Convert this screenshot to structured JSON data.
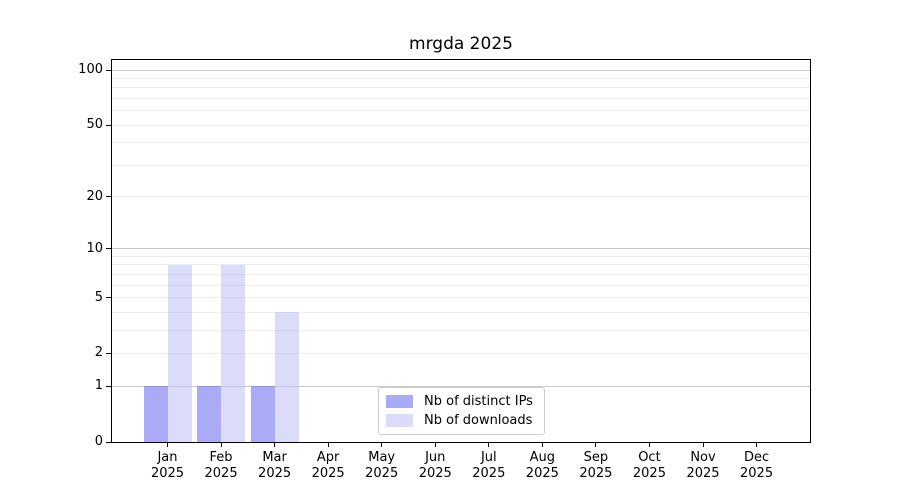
{
  "chart_data": {
    "type": "bar",
    "title": "mrgda 2025",
    "categories": [
      "Jan",
      "Feb",
      "Mar",
      "Apr",
      "May",
      "Jun",
      "Jul",
      "Aug",
      "Sep",
      "Oct",
      "Nov",
      "Dec"
    ],
    "year_label": "2025",
    "series": [
      {
        "name": "Nb of distinct IPs",
        "color": "#aaaaf7",
        "fill": "rgba(85,85,240,0.5)",
        "values": [
          1,
          1,
          1,
          0,
          0,
          0,
          0,
          0,
          0,
          0,
          0,
          0
        ]
      },
      {
        "name": "Nb of downloads",
        "color": "#dcdcf8",
        "fill": "rgba(190,190,245,0.55)",
        "values": [
          8,
          8,
          4,
          0,
          0,
          0,
          0,
          0,
          0,
          0,
          0,
          0
        ]
      }
    ],
    "xlabel": "",
    "ylabel": "",
    "yscale": "log1p",
    "yticks": [
      0,
      1,
      2,
      5,
      10,
      20,
      50,
      100
    ],
    "minor_gridlines": [
      2,
      3,
      4,
      5,
      6,
      7,
      8,
      9,
      20,
      30,
      40,
      50,
      60,
      70,
      80,
      90
    ],
    "major_gridlines": [
      1,
      10,
      100
    ],
    "ylim": [
      0,
      113
    ],
    "grid": "horizontal major+minor",
    "legend_position": "inside lower-center-left",
    "colors": {
      "major_grid": "#c9c9c9",
      "minor_grid": "#ececec",
      "spine": "#000000",
      "text": "#000000",
      "background": "#ffffff"
    }
  }
}
